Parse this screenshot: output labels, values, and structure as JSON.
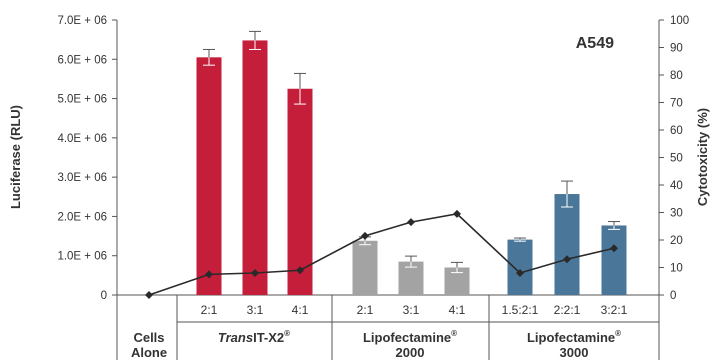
{
  "chart_data": {
    "type": "bar",
    "panel_label": "A549",
    "ylabel_left": "Luciferase (RLU)",
    "ylabel_right": "Cytotoxicity (%)",
    "y_left_ticks": [
      "0",
      "1.0E + 06",
      "2.0E + 06",
      "3.0E + 06",
      "4.0E + 06",
      "5.0E + 06",
      "6.0E + 06",
      "7.0E + 06"
    ],
    "y_left_range": [
      0,
      7000000
    ],
    "y_right_ticks": [
      "0",
      "10",
      "20",
      "30",
      "40",
      "50",
      "60",
      "70",
      "80",
      "90",
      "100"
    ],
    "y_right_range": [
      0,
      100
    ],
    "categories": [
      "",
      "2:1",
      "3:1",
      "4:1",
      "2:1",
      "3:1",
      "4:1",
      "1.5:2:1",
      "2:2:1",
      "3:2:1"
    ],
    "groups": [
      {
        "label": "Cells Alone",
        "italic": "",
        "superscript": ""
      },
      {
        "label": "IT-X2",
        "italic": "Trans",
        "superscript": "®"
      },
      {
        "label": "Lipofectamine 2000",
        "italic": "",
        "superscript": "®"
      },
      {
        "label": "Lipofectamine 3000",
        "italic": "",
        "superscript": "®"
      }
    ],
    "group_colors": [
      "#c41e3a",
      "#c41e3a",
      "#a3a3a3",
      "#4a7799"
    ],
    "luciferase": [
      0,
      6050000,
      6480000,
      5250000,
      1380000,
      850000,
      700000,
      1410000,
      2570000,
      1770000
    ],
    "luciferase_error": [
      0,
      200000,
      230000,
      390000,
      100000,
      140000,
      130000,
      40000,
      330000,
      100000
    ],
    "bar_groups": [
      null,
      1,
      1,
      1,
      2,
      2,
      2,
      3,
      3,
      3
    ],
    "cytotoxicity": [
      0,
      7.5,
      8,
      9,
      21.5,
      26.5,
      29.5,
      8,
      13,
      17
    ],
    "line_color": "#2a2a2a"
  }
}
